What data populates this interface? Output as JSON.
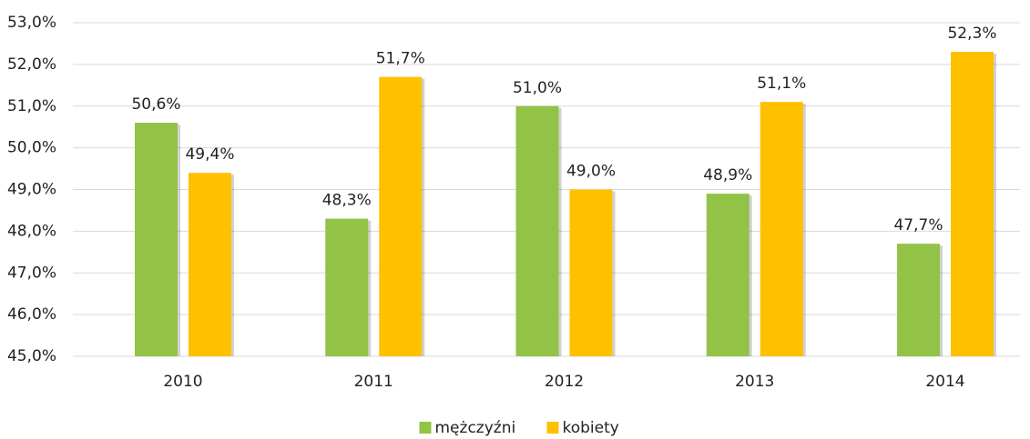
{
  "chart_data": {
    "type": "bar",
    "categories": [
      "2010",
      "2011",
      "2012",
      "2013",
      "2014"
    ],
    "series": [
      {
        "name": "mężczyźni",
        "color": "#92c347",
        "values": [
          50.6,
          48.3,
          51.0,
          48.9,
          47.7
        ],
        "value_labels": [
          "50,6%",
          "48,3%",
          "51,0%",
          "48,9%",
          "47,7%"
        ]
      },
      {
        "name": "kobiety",
        "color": "#ffc000",
        "values": [
          49.4,
          51.7,
          49.0,
          51.1,
          52.3
        ],
        "value_labels": [
          "49,4%",
          "51,7%",
          "49,0%",
          "51,1%",
          "52,3%"
        ]
      }
    ],
    "ylim": [
      45,
      53
    ],
    "yticks": [
      {
        "value": 45,
        "label": "45,0%"
      },
      {
        "value": 46,
        "label": "46,0%"
      },
      {
        "value": 47,
        "label": "47,0%"
      },
      {
        "value": 48,
        "label": "48,0%"
      },
      {
        "value": 49,
        "label": "49,0%"
      },
      {
        "value": 50,
        "label": "50,0%"
      },
      {
        "value": 51,
        "label": "51,0%"
      },
      {
        "value": 52,
        "label": "52,0%"
      },
      {
        "value": 53,
        "label": "53,0%"
      }
    ],
    "grid": true,
    "legend": "bottom"
  }
}
